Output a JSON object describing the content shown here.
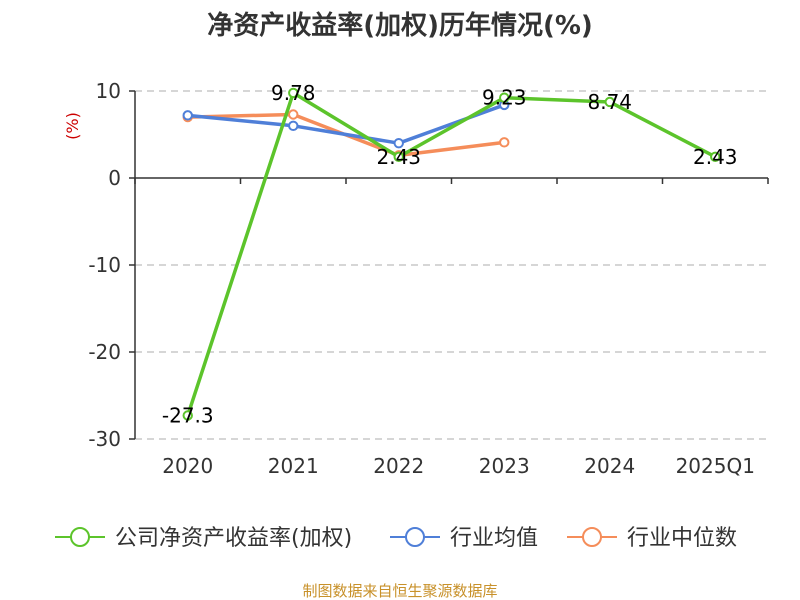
{
  "chart_data": {
    "type": "line",
    "title": "净资产收益率(加权)历年情况(%)",
    "ylabel": "(%)",
    "xlabel": "",
    "categories": [
      "2020",
      "2021",
      "2022",
      "2023",
      "2024",
      "2025Q1"
    ],
    "ylim": [
      -30,
      10
    ],
    "yticks": [
      10,
      0,
      -10,
      -20,
      -30
    ],
    "grid": true,
    "legend_position": "bottom",
    "series": [
      {
        "name": "公司净资产收益率(加权)",
        "color": "#5cc42b",
        "values": [
          -27.3,
          9.78,
          2.43,
          9.23,
          8.74,
          2.43
        ],
        "labels": [
          "-27.3",
          "9.78",
          "2.43",
          "9.23",
          "8.74",
          "2.43"
        ]
      },
      {
        "name": "行业均值",
        "color": "#4f7fd8",
        "values": [
          7.2,
          6.0,
          4.0,
          8.4,
          null,
          null
        ]
      },
      {
        "name": "行业中位数",
        "color": "#f58d5a",
        "values": [
          7.0,
          7.3,
          2.6,
          4.1,
          null,
          null
        ]
      }
    ]
  },
  "source": "制图数据来自恒生聚源数据库"
}
